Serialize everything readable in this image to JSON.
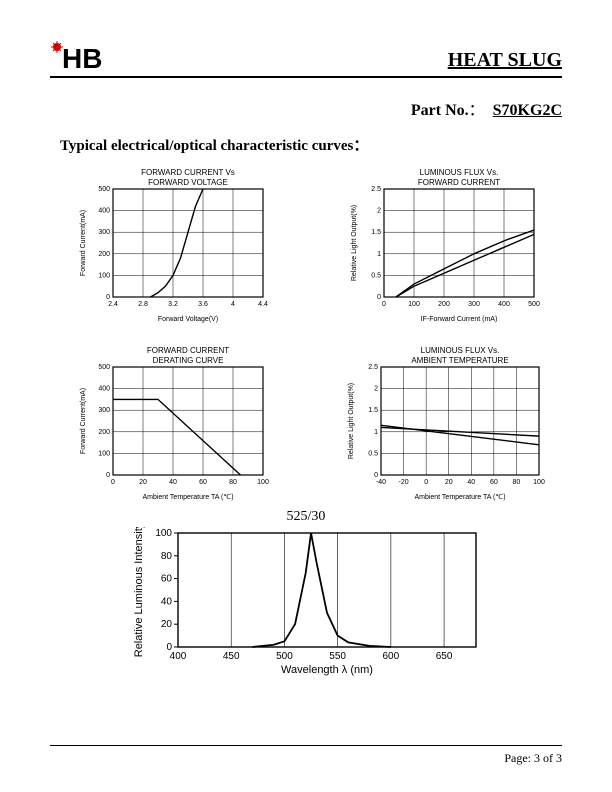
{
  "header": {
    "brand": "HB",
    "product": "HEAT SLUG"
  },
  "partno": {
    "label": "Part No.",
    "sep": "：",
    "value": "S70KG2C"
  },
  "section_title": "Typical electrical/optical characteristic curves：",
  "chart1": {
    "type": "line",
    "title_l1": "FORWARD CURRENT Vs",
    "title_l2": "FORWARD VOLTAGE",
    "xlabel": "Forward Voltage(V)",
    "ylabel": "Forward Current(mA)",
    "xlim": [
      2.4,
      4.4
    ],
    "ylim": [
      0,
      500
    ],
    "xticks": [
      2.4,
      2.8,
      3.2,
      3.6,
      4.0,
      4.4
    ],
    "yticks": [
      0,
      100,
      200,
      300,
      400,
      500
    ],
    "line_color": "#000000",
    "grid_color": "#000000",
    "bg": "#ffffff",
    "points": [
      [
        2.9,
        0
      ],
      [
        3.0,
        20
      ],
      [
        3.1,
        50
      ],
      [
        3.2,
        100
      ],
      [
        3.3,
        180
      ],
      [
        3.4,
        300
      ],
      [
        3.5,
        420
      ],
      [
        3.6,
        500
      ]
    ]
  },
  "chart2": {
    "type": "line",
    "title_l1": "LUMINOUS FLUX Vs.",
    "title_l2": "FORWARD CURRENT",
    "xlabel": "IF-Forward Current (mA)",
    "ylabel": "Relative Light Output(%)",
    "xlim": [
      0,
      500
    ],
    "ylim": [
      0,
      2.5
    ],
    "xticks": [
      0,
      100,
      200,
      300,
      400,
      500
    ],
    "yticks": [
      0,
      0.5,
      1.0,
      1.5,
      2.0,
      2.5
    ],
    "line_color": "#000000",
    "grid_color": "#000000",
    "bg": "#ffffff",
    "series": [
      [
        [
          40,
          0
        ],
        [
          100,
          0.25
        ],
        [
          200,
          0.55
        ],
        [
          300,
          0.85
        ],
        [
          400,
          1.15
        ],
        [
          500,
          1.45
        ]
      ],
      [
        [
          40,
          0
        ],
        [
          100,
          0.3
        ],
        [
          200,
          0.65
        ],
        [
          300,
          1.0
        ],
        [
          400,
          1.3
        ],
        [
          500,
          1.55
        ]
      ]
    ]
  },
  "chart3": {
    "type": "line",
    "title_l1": "FORWARD CURRENT",
    "title_l2": "DERATING CURVE",
    "xlabel": "Ambient Temperature TA (℃)",
    "ylabel": "Forward Current(mA)",
    "xlim": [
      0,
      100
    ],
    "ylim": [
      0,
      500
    ],
    "xticks": [
      0,
      20,
      40,
      60,
      80,
      100
    ],
    "yticks": [
      0,
      100,
      200,
      300,
      400,
      500
    ],
    "line_color": "#000000",
    "grid_color": "#000000",
    "bg": "#ffffff",
    "points": [
      [
        0,
        350
      ],
      [
        30,
        350
      ],
      [
        85,
        0
      ]
    ]
  },
  "chart4": {
    "type": "line",
    "title_l1": "LUMINOUS FLUX Vs.",
    "title_l2": "AMBIENT TEMPERATURE",
    "xlabel": "Ambient Temperature TA (℃)",
    "ylabel": "Relative Light Output(%)",
    "xlim": [
      -40,
      100
    ],
    "ylim": [
      0,
      2.5
    ],
    "xticks": [
      -40,
      -20,
      0,
      20,
      40,
      60,
      80,
      100
    ],
    "yticks": [
      0,
      0.5,
      1.0,
      1.5,
      2.0,
      2.5
    ],
    "line_color": "#000000",
    "grid_color": "#000000",
    "bg": "#ffffff",
    "series": [
      [
        [
          -40,
          1.1
        ],
        [
          100,
          0.9
        ]
      ],
      [
        [
          -40,
          1.15
        ],
        [
          100,
          0.7
        ]
      ]
    ]
  },
  "chart5": {
    "type": "line",
    "title": "525/30",
    "xlabel": "Wavelength λ  (nm)",
    "ylabel": "Relative Luminous Intensity",
    "xlim": [
      400,
      680
    ],
    "ylim": [
      0,
      100
    ],
    "xticks": [
      400,
      450,
      500,
      550,
      600,
      650
    ],
    "yticks": [
      0,
      20,
      40,
      60,
      80,
      100
    ],
    "line_color": "#000000",
    "grid_color": "#000000",
    "bg": "#ffffff",
    "points": [
      [
        470,
        0
      ],
      [
        490,
        2
      ],
      [
        500,
        5
      ],
      [
        510,
        20
      ],
      [
        520,
        65
      ],
      [
        525,
        100
      ],
      [
        530,
        75
      ],
      [
        540,
        30
      ],
      [
        550,
        10
      ],
      [
        560,
        4
      ],
      [
        580,
        1
      ],
      [
        600,
        0
      ]
    ]
  },
  "footer": {
    "page": "Page: 3 of 3"
  }
}
